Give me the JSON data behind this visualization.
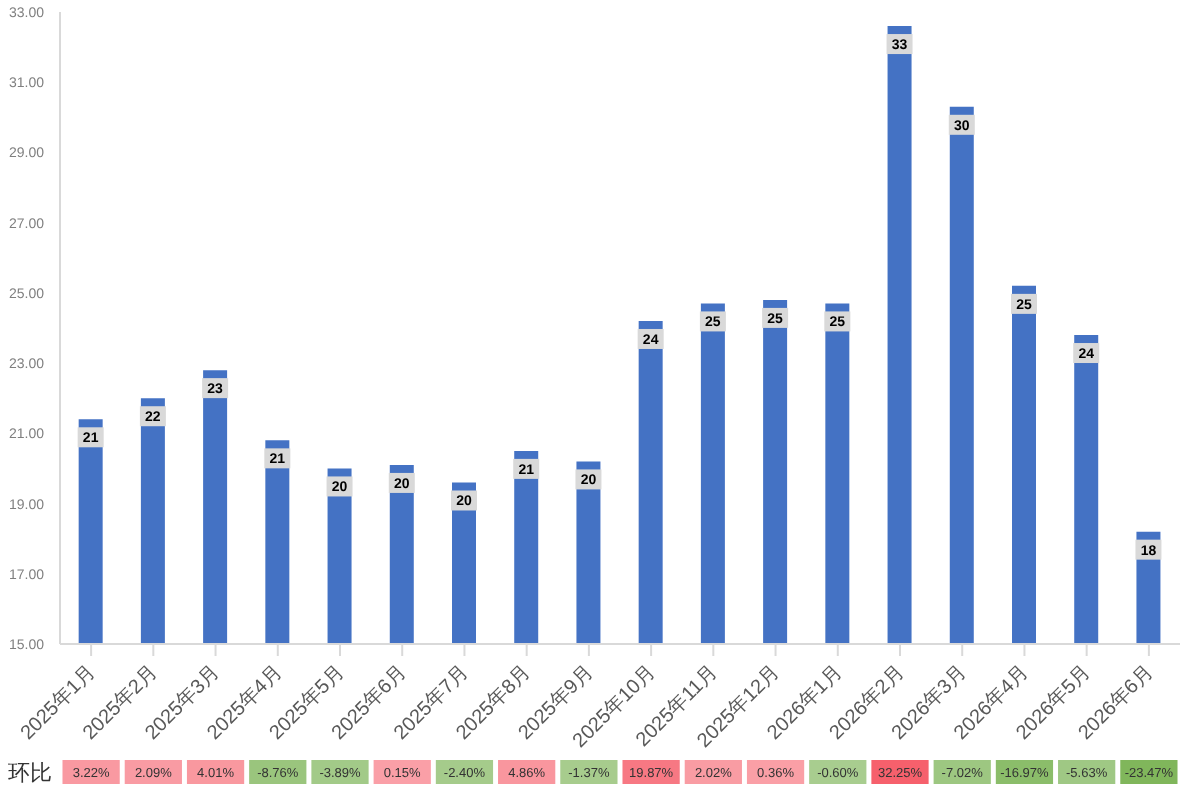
{
  "chart_data": [
    {
      "type": "bar",
      "categories": [
        null,
        null,
        null,
        null,
        null,
        null,
        null,
        null,
        null,
        null,
        null,
        null,
        null,
        null,
        null,
        null,
        null,
        null
      ],
      "values": [
        21.4,
        22.0,
        22.8,
        20.8,
        20.0,
        20.1,
        19.6,
        20.5,
        20.2,
        24.2,
        24.7,
        24.8,
        24.7,
        32.6,
        30.3,
        25.2,
        23.8,
        18.2
      ],
      "value_labels": [
        "21",
        "22",
        "23",
        "21",
        "20",
        "20",
        "20",
        "21",
        "20",
        "24",
        "25",
        "25",
        "25",
        "33",
        "30",
        "25",
        "24",
        "18"
      ],
      "color": "#4472c4",
      "ylim": [
        15,
        33
      ],
      "yticks": [
        {
          "value": 15,
          "label": "15.00"
        },
        {
          "value": 17,
          "label": "17.00"
        },
        {
          "value": 19,
          "label": "19.00"
        },
        {
          "value": 21,
          "label": "21.00"
        },
        {
          "value": 23,
          "label": "23.00"
        },
        {
          "value": 25,
          "label": "25.00"
        },
        {
          "value": 27,
          "label": "27.00"
        },
        {
          "value": 29,
          "label": "29.00"
        },
        {
          "value": 31,
          "label": "31.00"
        },
        {
          "value": 33,
          "label": "33.00"
        }
      ]
    },
    {
      "type": "heatmap",
      "categories": [
        "2025年1月",
        "2025年2月",
        "2025年3月",
        "2025年4月",
        "2025年5月",
        "2025年6月",
        "2025年7月",
        "2025年8月",
        "2025年9月",
        "2025年10月",
        "2025年11月",
        "2025年12月",
        "2026年1月",
        "2026年2月",
        "2026年3月",
        "2026年4月",
        "2026年5月",
        "2026年6月"
      ],
      "y_categories": [
        "环比"
      ],
      "cells": [
        [
          3.22,
          2.09,
          4.01,
          -8.76,
          -3.89,
          0.15,
          -2.4,
          4.86,
          -1.37,
          19.87,
          2.02,
          0.36,
          -0.6,
          32.25,
          -7.02,
          -16.97,
          -5.63,
          -23.47
        ]
      ],
      "cell_labels": [
        [
          "3.22%",
          "2.09%",
          "4.01%",
          "-8.76%",
          "-3.89%",
          "0.15%",
          "-2.40%",
          "4.86%",
          "-1.37%",
          "19.87%",
          "2.02%",
          "0.36%",
          "-0.60%",
          "32.25%",
          "-7.02%",
          "-16.97%",
          "-5.63%",
          "-23.47%"
        ]
      ]
    }
  ]
}
